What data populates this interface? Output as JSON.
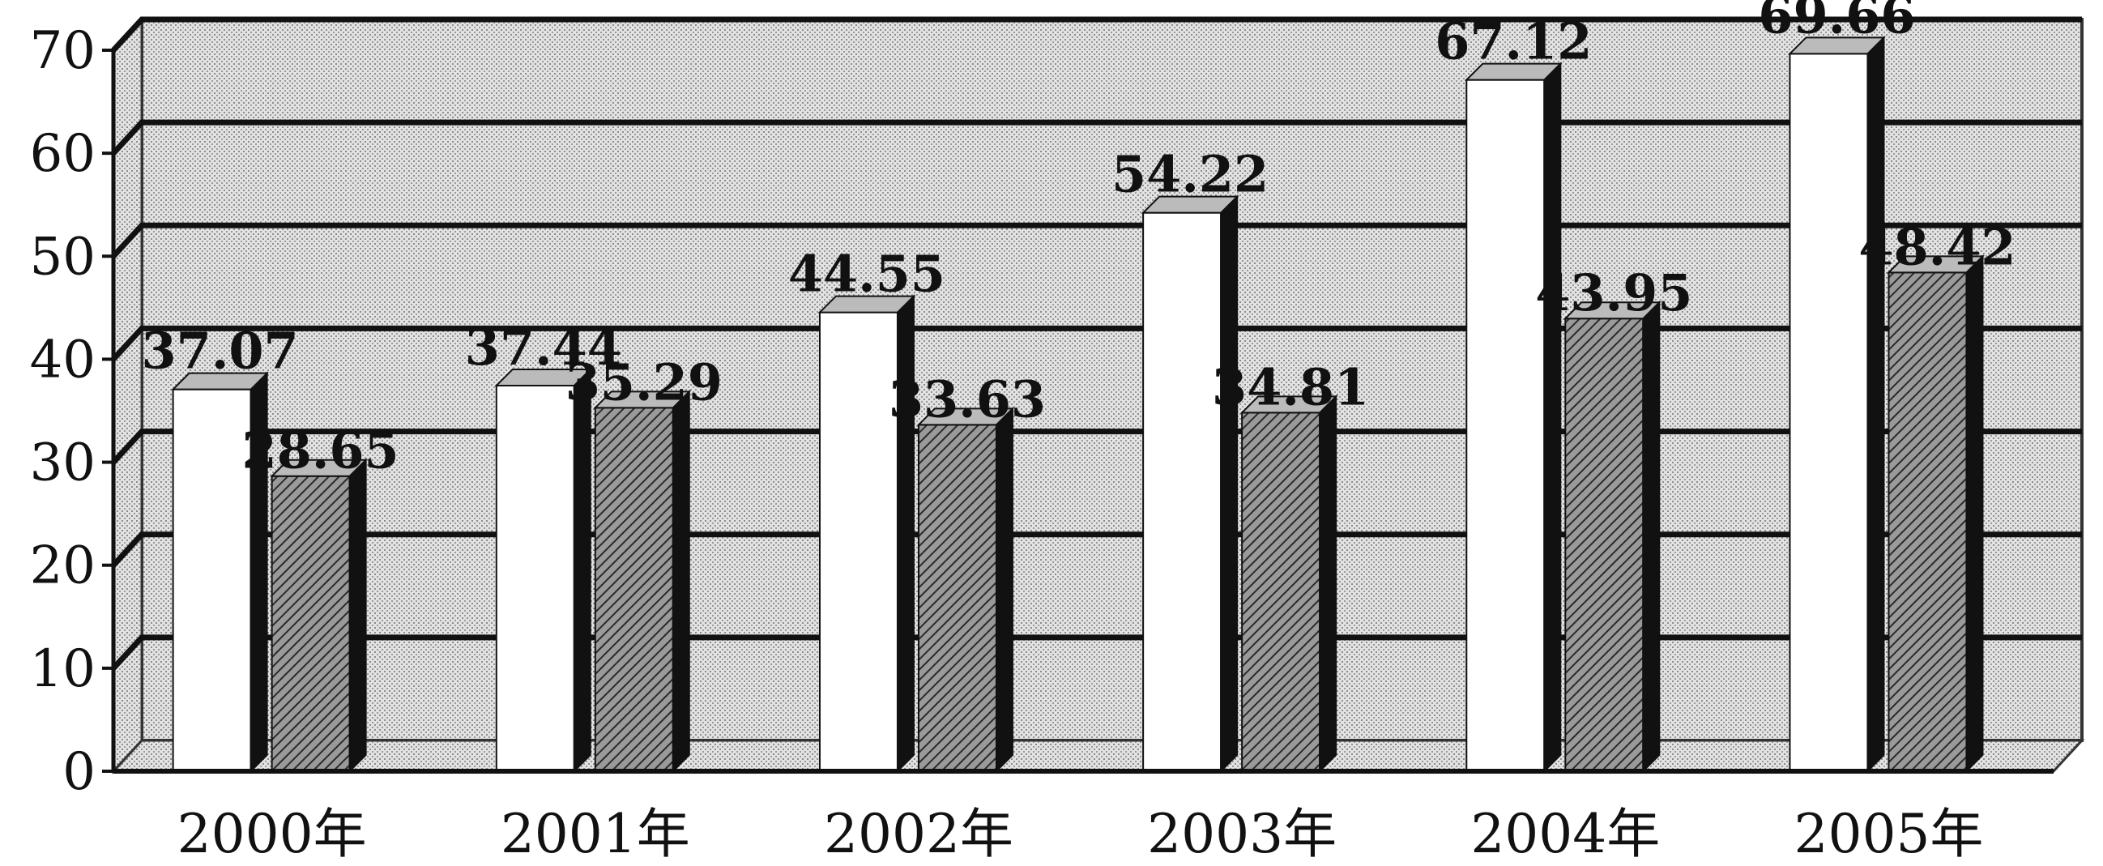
{
  "chart_data": {
    "type": "bar",
    "title": "",
    "xlabel": "",
    "ylabel": "",
    "ylim": [
      0,
      70
    ],
    "yticks": [
      0,
      10,
      20,
      30,
      40,
      50,
      60,
      70
    ],
    "grid": true,
    "legend": "none",
    "categories": [
      "2000年",
      "2001年",
      "2002年",
      "2003年",
      "2004年",
      "2005年"
    ],
    "series": [
      {
        "values": [
          37.07,
          37.44,
          44.55,
          54.22,
          67.12,
          69.66
        ],
        "labels": [
          "37.07",
          "37.44",
          "44.55",
          "54.22",
          "67.12",
          "69.66"
        ]
      },
      {
        "values": [
          28.65,
          35.29,
          33.63,
          34.81,
          43.95,
          48.42
        ],
        "labels": [
          "28.65",
          "35.29",
          "33.63",
          "34.81",
          "43.95",
          "48.42"
        ]
      }
    ]
  },
  "colors": {
    "background": "#ffffff",
    "plot_back": "#d6d6d6",
    "gridline": "#111111",
    "series_1_face": "#ffffff",
    "series_1_side": "#111111",
    "series_2_face": "#8a8a8a",
    "series_2_side": "#111111"
  }
}
